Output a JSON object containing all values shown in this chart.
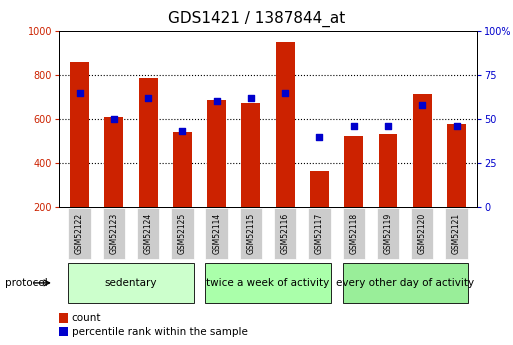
{
  "title": "GDS1421 / 1387844_at",
  "samples": [
    "GSM52122",
    "GSM52123",
    "GSM52124",
    "GSM52125",
    "GSM52114",
    "GSM52115",
    "GSM52116",
    "GSM52117",
    "GSM52118",
    "GSM52119",
    "GSM52120",
    "GSM52121"
  ],
  "counts": [
    860,
    610,
    785,
    540,
    688,
    675,
    950,
    362,
    522,
    533,
    712,
    578
  ],
  "percentile": [
    65,
    50,
    62,
    43,
    60,
    62,
    65,
    40,
    46,
    46,
    58,
    46
  ],
  "groups": [
    {
      "label": "sedentary",
      "indices": [
        0,
        1,
        2,
        3
      ]
    },
    {
      "label": "twice a week of activity",
      "indices": [
        4,
        5,
        6,
        7
      ]
    },
    {
      "label": "every other day of activity",
      "indices": [
        8,
        9,
        10,
        11
      ]
    }
  ],
  "group_colors": [
    "#ccffcc",
    "#aaffaa",
    "#99ee99"
  ],
  "bar_color": "#cc2200",
  "dot_color": "#0000cc",
  "ylim_left": [
    200,
    1000
  ],
  "ylim_right": [
    0,
    100
  ],
  "yticks_left": [
    200,
    400,
    600,
    800,
    1000
  ],
  "yticks_right": [
    0,
    25,
    50,
    75,
    100
  ],
  "bar_width": 0.55,
  "ylabel_left_color": "#cc2200",
  "ylabel_right_color": "#0000cc",
  "title_fontsize": 11,
  "tick_fontsize": 7,
  "legend_fontsize": 7.5,
  "group_label_fontsize": 7.5,
  "sample_fontsize": 5.5,
  "sample_bg_color": "#cccccc"
}
